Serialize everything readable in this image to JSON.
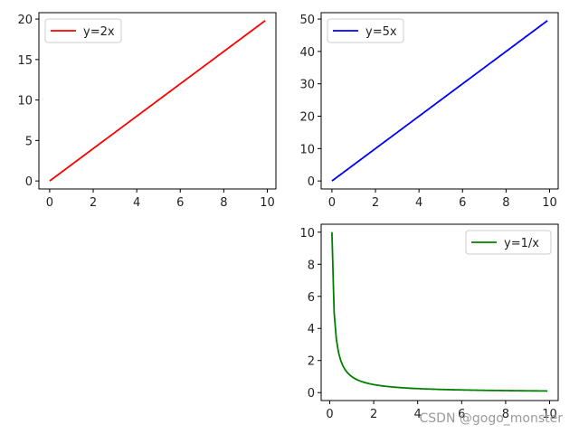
{
  "watermark": "CSDN @gogo_monster",
  "chart_data": [
    {
      "type": "line",
      "x_range": [
        0,
        9.9
      ],
      "x_step": 0.1,
      "xlim": [
        -0.495,
        10.395
      ],
      "ylim": [
        -0.99,
        20.79
      ],
      "xticks": [
        0,
        2,
        4,
        6,
        8,
        10
      ],
      "yticks": [
        0,
        5,
        10,
        15,
        20
      ],
      "legend_position": "upper-left",
      "series": [
        {
          "name": "y=2x",
          "formula": "2x",
          "color": "#ff0000"
        }
      ]
    },
    {
      "type": "line",
      "x_range": [
        0,
        9.9
      ],
      "x_step": 0.1,
      "xlim": [
        -0.495,
        10.395
      ],
      "ylim": [
        -2.475,
        51.975
      ],
      "xticks": [
        0,
        2,
        4,
        6,
        8,
        10
      ],
      "yticks": [
        0,
        10,
        20,
        30,
        40,
        50
      ],
      "legend_position": "upper-left",
      "series": [
        {
          "name": "y=5x",
          "formula": "5x",
          "color": "#0000ff"
        }
      ]
    },
    {
      "type": "line",
      "x_range": [
        0.1,
        9.9
      ],
      "x_step": 0.1,
      "xlim": [
        -0.39,
        10.39
      ],
      "ylim": [
        -0.495,
        10.495
      ],
      "xticks": [
        0,
        2,
        4,
        6,
        8,
        10
      ],
      "yticks": [
        0,
        2,
        4,
        6,
        8,
        10
      ],
      "legend_position": "upper-right",
      "series": [
        {
          "name": "y=1/x",
          "formula": "1/x",
          "color": "#008000"
        }
      ]
    }
  ]
}
